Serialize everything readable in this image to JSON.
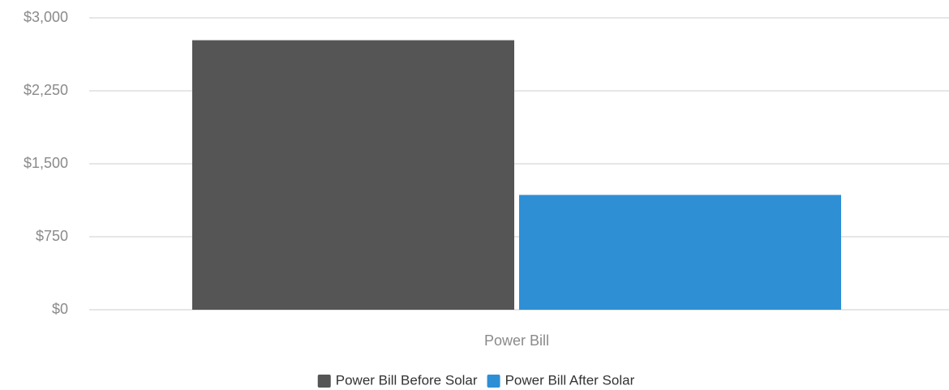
{
  "chart_data": {
    "type": "bar",
    "categories": [
      "Power Bill"
    ],
    "series": [
      {
        "name": "Power Bill Before Solar",
        "color": "#555555",
        "values": [
          2770
        ]
      },
      {
        "name": "Power Bill After Solar",
        "color": "#2e8fd4",
        "values": [
          1180
        ]
      }
    ],
    "ylim": [
      0,
      3000
    ],
    "yticks": [
      {
        "value": 0,
        "label": "$0"
      },
      {
        "value": 750,
        "label": "$750"
      },
      {
        "value": 1500,
        "label": "$1,500"
      },
      {
        "value": 2250,
        "label": "$2,250"
      },
      {
        "value": 3000,
        "label": "$3,000"
      }
    ],
    "grid": true,
    "legend": "bottom"
  }
}
